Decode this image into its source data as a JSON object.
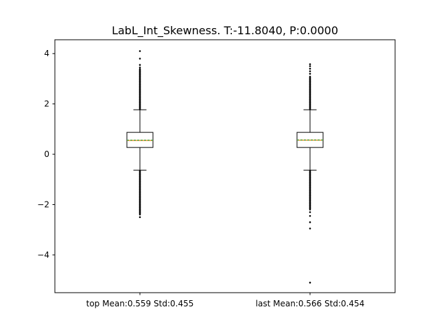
{
  "chart_data": {
    "type": "box",
    "title": "LabL_Int_Skewness. T:-11.8040, P:0.0000",
    "categories": [
      "top Mean:0.559 Std:0.455",
      "last Mean:0.566 Std:0.454"
    ],
    "ylim": [
      -5.5,
      4.55
    ],
    "yticks": [
      -4,
      -2,
      0,
      2,
      4
    ],
    "ytick_labels": [
      "−4",
      "−2",
      "0",
      "2",
      "4"
    ],
    "grid": false,
    "series": [
      {
        "q1": 0.27,
        "median": 0.55,
        "mean": 0.559,
        "q3": 0.87,
        "whisker_low": -0.63,
        "whisker_high": 1.77,
        "fliers_high_range": [
          1.78,
          3.4
        ],
        "fliers_low_range": [
          -2.4,
          -0.65
        ],
        "fliers_extra": [
          3.45,
          3.55,
          3.8,
          4.1,
          -2.5
        ]
      },
      {
        "q1": 0.27,
        "median": 0.56,
        "mean": 0.566,
        "q3": 0.87,
        "whisker_low": -0.63,
        "whisker_high": 1.77,
        "fliers_high_range": [
          1.78,
          3.1
        ],
        "fliers_low_range": [
          -2.2,
          -0.65
        ],
        "fliers_extra": [
          3.2,
          3.3,
          3.4,
          3.5,
          3.58,
          -2.3,
          -2.45,
          -2.7,
          -2.95,
          -5.1
        ]
      }
    ],
    "colors": {
      "median": "#ff7f0e",
      "mean": "#2ca02c",
      "box": "#000000"
    }
  }
}
